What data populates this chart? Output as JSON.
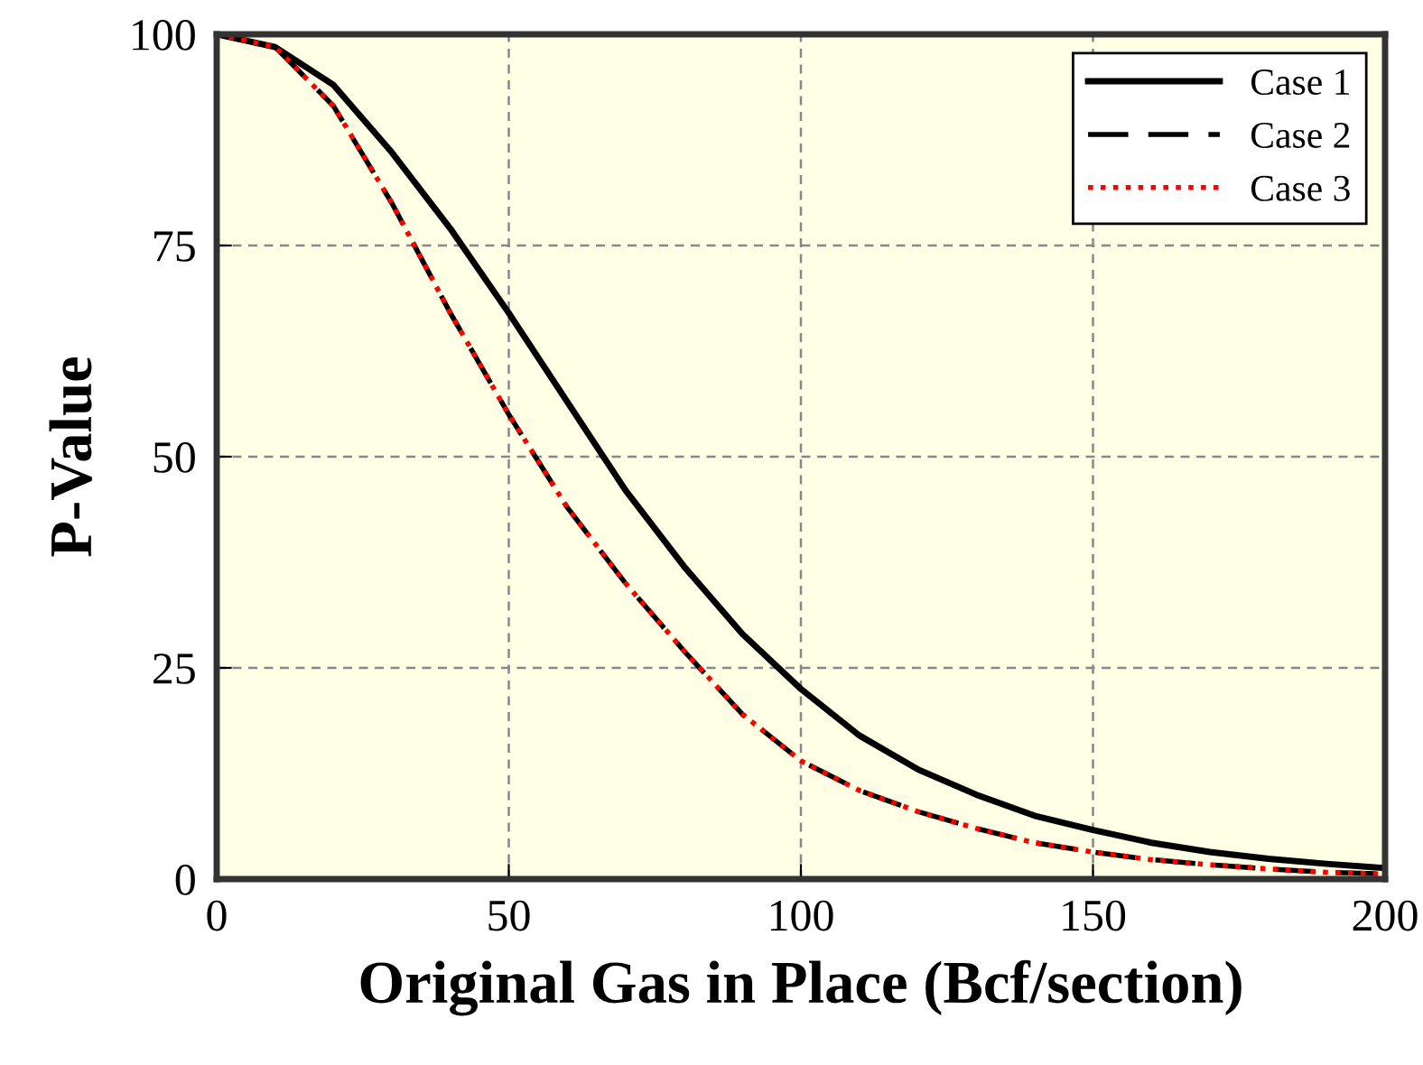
{
  "chart_data": {
    "type": "line",
    "xlabel": "Original Gas in Place (Bcf/section)",
    "ylabel": "P-Value",
    "x": [
      0,
      10,
      20,
      30,
      40,
      50,
      60,
      70,
      80,
      90,
      100,
      110,
      120,
      130,
      140,
      150,
      160,
      170,
      180,
      190,
      200
    ],
    "series": [
      {
        "name": "Case 1",
        "color": "#000000",
        "line_style": "solid",
        "values": [
          100,
          98.5,
          94,
          86,
          77,
          67,
          56.5,
          46,
          37,
          29,
          22.5,
          17,
          13,
          10,
          7.5,
          5.8,
          4.3,
          3.2,
          2.4,
          1.8,
          1.3
        ]
      },
      {
        "name": "Case 2",
        "color": "#000000",
        "line_style": "dashed",
        "values": [
          100,
          98.5,
          91.5,
          80,
          67,
          55,
          44,
          35,
          27,
          19.5,
          14,
          10.5,
          8,
          6,
          4.3,
          3.2,
          2.3,
          1.7,
          1.2,
          0.8,
          0.6
        ]
      },
      {
        "name": "Case 3",
        "color": "#ff0000",
        "line_style": "dotted",
        "values": [
          100,
          98.5,
          91.5,
          80,
          67,
          55,
          44,
          35,
          27,
          19.5,
          14,
          10.5,
          8,
          6,
          4.3,
          3.2,
          2.3,
          1.7,
          1.2,
          0.8,
          0.6
        ]
      }
    ],
    "xlim": [
      0,
      200
    ],
    "xticks": [
      0,
      50,
      100,
      150,
      200
    ],
    "ylim": [
      0,
      100
    ],
    "yticks": [
      0,
      25,
      50,
      75,
      100
    ],
    "grid": true,
    "legend": "top right"
  }
}
